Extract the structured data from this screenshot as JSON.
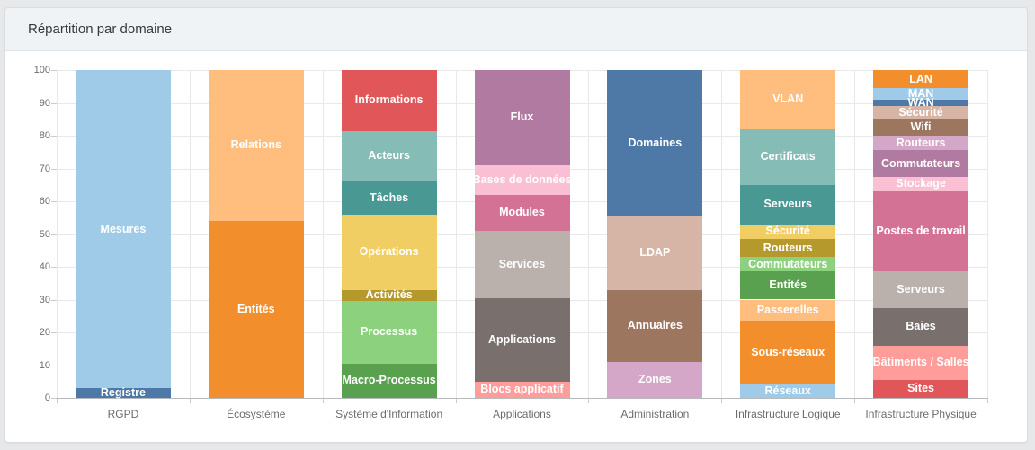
{
  "header": {
    "title": "Répartition par domaine"
  },
  "theme": {
    "page_bg": "#e6e8ea",
    "card_bg": "#ffffff",
    "card_border": "#d9dde1",
    "header_bg": "#f0f3f5",
    "header_border": "#dee3e7",
    "title_color": "#343a40",
    "grid_color": "#e9e9e9",
    "axis_line_color": "#b7babd",
    "tick_color": "#c9ccce",
    "axis_label_color": "#696d71",
    "segment_label_color": "#ffffff"
  },
  "chart_data": {
    "type": "bar",
    "variant": "stacked-percent",
    "title": "Répartition par domaine",
    "xlabel": "",
    "ylabel": "",
    "ylim": [
      0,
      100
    ],
    "yticks": [
      0,
      10,
      20,
      30,
      40,
      50,
      60,
      70,
      80,
      90,
      100
    ],
    "grid": true,
    "legend": false,
    "categories": [
      "RGPD",
      "Écosystème",
      "Système d'Information",
      "Applications",
      "Administration",
      "Infrastructure Logique",
      "Infrastructure Physique"
    ],
    "bars": [
      {
        "category": "RGPD",
        "segments": [
          {
            "label": "Registre",
            "value": 3,
            "color": "#4E79A7"
          },
          {
            "label": "Mesures",
            "value": 97,
            "color": "#A0CBE8"
          }
        ]
      },
      {
        "category": "Écosystème",
        "segments": [
          {
            "label": "Entités",
            "value": 54,
            "color": "#F28E2B"
          },
          {
            "label": "Relations",
            "value": 46,
            "color": "#FFBE7D"
          }
        ]
      },
      {
        "category": "Système d'Information",
        "segments": [
          {
            "label": "Macro-Processus",
            "value": 10.5,
            "color": "#59A14F"
          },
          {
            "label": "Processus",
            "value": 19,
            "color": "#8CD17D"
          },
          {
            "label": "Activités",
            "value": 3.5,
            "color": "#B6992D"
          },
          {
            "label": "Opérations",
            "value": 23,
            "color": "#F1CE63"
          },
          {
            "label": "Tâches",
            "value": 10,
            "color": "#499894"
          },
          {
            "label": "Acteurs",
            "value": 15.5,
            "color": "#86BCB6"
          },
          {
            "label": "Informations",
            "value": 18.5,
            "color": "#E15759"
          }
        ]
      },
      {
        "category": "Applications",
        "segments": [
          {
            "label": "Blocs applicatif",
            "value": 5,
            "color": "#FF9D9A"
          },
          {
            "label": "Applications",
            "value": 25.5,
            "color": "#79706E"
          },
          {
            "label": "Services",
            "value": 20.5,
            "color": "#BAB0AC"
          },
          {
            "label": "Modules",
            "value": 11,
            "color": "#D37295"
          },
          {
            "label": "Bases de données",
            "value": 9,
            "color": "#FABFD2"
          },
          {
            "label": "Flux",
            "value": 29,
            "color": "#B07AA1"
          }
        ]
      },
      {
        "category": "Administration",
        "segments": [
          {
            "label": "Zones",
            "value": 11,
            "color": "#D4A6C8"
          },
          {
            "label": "Annuaires",
            "value": 22,
            "color": "#9D7660"
          },
          {
            "label": "LDAP",
            "value": 22.5,
            "color": "#D7B5A6"
          },
          {
            "label": "Domaines",
            "value": 44.5,
            "color": "#4E79A7"
          }
        ]
      },
      {
        "category": "Infrastructure Logique",
        "segments": [
          {
            "label": "Réseaux",
            "value": 4,
            "color": "#A0CBE8"
          },
          {
            "label": "Sous-réseaux",
            "value": 19.5,
            "color": "#F28E2B"
          },
          {
            "label": "Passerelles",
            "value": 6.5,
            "color": "#FFBE7D"
          },
          {
            "label": "Entités",
            "value": 8.5,
            "color": "#59A14F"
          },
          {
            "label": "Commutateurs",
            "value": 4.5,
            "color": "#8CD17D"
          },
          {
            "label": "Routeurs",
            "value": 5.5,
            "color": "#B6992D"
          },
          {
            "label": "Sécurité",
            "value": 4.5,
            "color": "#F1CE63"
          },
          {
            "label": "Serveurs",
            "value": 12,
            "color": "#499894"
          },
          {
            "label": "Certificats",
            "value": 17,
            "color": "#86BCB6"
          },
          {
            "label": "VLAN",
            "value": 18,
            "color": "#FFBE7D"
          }
        ]
      },
      {
        "category": "Infrastructure Physique",
        "segments": [
          {
            "label": "Sites",
            "value": 5.5,
            "color": "#E15759"
          },
          {
            "label": "Bâtiments / Salles",
            "value": 10.5,
            "color": "#FF9D9A"
          },
          {
            "label": "Baies",
            "value": 11.5,
            "color": "#79706E"
          },
          {
            "label": "Serveurs",
            "value": 11,
            "color": "#BAB0AC"
          },
          {
            "label": "Postes de travail",
            "value": 24.5,
            "color": "#D37295"
          },
          {
            "label": "Stockage",
            "value": 4.5,
            "color": "#FABFD2"
          },
          {
            "label": "Commutateurs",
            "value": 8,
            "color": "#B07AA1"
          },
          {
            "label": "Routeurs",
            "value": 4.5,
            "color": "#D4A6C8"
          },
          {
            "label": "Wifi",
            "value": 5,
            "color": "#9D7660"
          },
          {
            "label": "Sécurité",
            "value": 4,
            "color": "#D7B5A6"
          },
          {
            "label": "WAN",
            "value": 2,
            "color": "#4E79A7"
          },
          {
            "label": "MAN",
            "value": 3.5,
            "color": "#A0CBE8"
          },
          {
            "label": "LAN",
            "value": 5.5,
            "color": "#F28E2B"
          }
        ]
      }
    ]
  }
}
